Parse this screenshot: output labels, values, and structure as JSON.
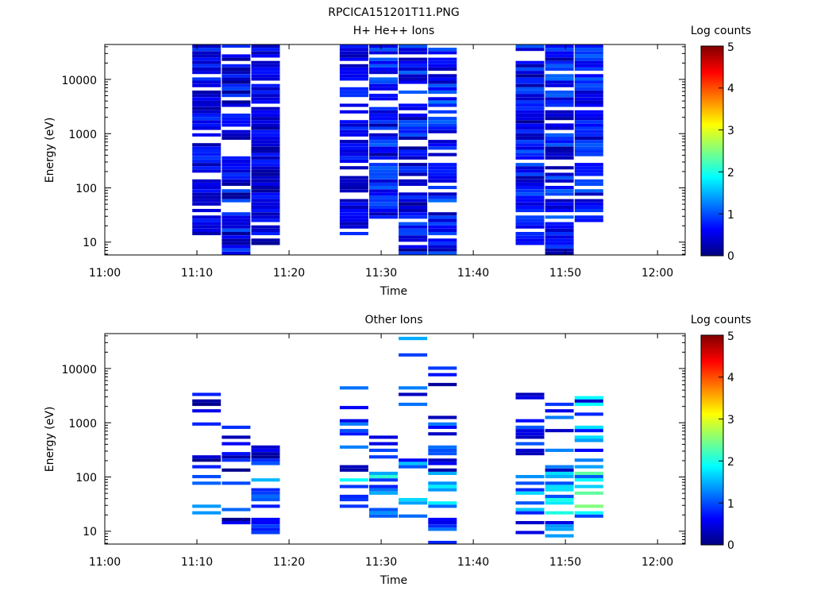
{
  "figure_title": "RPCICA151201T11.PNG",
  "colorbar": {
    "label": "Log counts",
    "ticks": [
      "0",
      "1",
      "2",
      "3",
      "4",
      "5"
    ],
    "colormap": [
      "#000080",
      "#0000ff",
      "#0080ff",
      "#00ffff",
      "#80ff80",
      "#ffff00",
      "#ff8000",
      "#ff0000",
      "#800000"
    ],
    "range": [
      0,
      5
    ]
  },
  "chart_data": [
    {
      "type": "heatmap",
      "title": "H+ He++ Ions",
      "xlabel": "Time",
      "ylabel": "Energy (eV)",
      "x_tick_labels": [
        "11:00",
        "11:10",
        "11:20",
        "11:30",
        "11:40",
        "11:50",
        "12:00"
      ],
      "y_tick_labels": [
        "10",
        "100",
        "1000",
        "10000"
      ],
      "y_scale": "log",
      "xlim": [
        "11:00",
        "12:03"
      ],
      "ylim": [
        5.8,
        44000
      ],
      "columns": [
        {
          "start": "11:09.5",
          "end": "11:12.6",
          "pattern": "h1"
        },
        {
          "start": "11:12.7",
          "end": "11:15.8",
          "pattern": "h2"
        },
        {
          "start": "11:15.9",
          "end": "11:19.0",
          "pattern": "h3"
        },
        {
          "start": "11:25.5",
          "end": "11:28.6",
          "pattern": "h4"
        },
        {
          "start": "11:28.7",
          "end": "11:31.8",
          "pattern": "h5"
        },
        {
          "start": "11:31.9",
          "end": "11:35.0",
          "pattern": "h6"
        },
        {
          "start": "11:35.1",
          "end": "11:38.2",
          "pattern": "h7"
        },
        {
          "start": "11:44.6",
          "end": "11:47.7",
          "pattern": "h8"
        },
        {
          "start": "11:47.8",
          "end": "11:50.9",
          "pattern": "h9"
        },
        {
          "start": "11:51.0",
          "end": "11:54.1",
          "pattern": "h10"
        }
      ]
    },
    {
      "type": "heatmap",
      "title": "Other Ions",
      "xlabel": "Time",
      "ylabel": "Energy (eV)",
      "x_tick_labels": [
        "11:00",
        "11:10",
        "11:20",
        "11:30",
        "11:40",
        "11:50",
        "12:00"
      ],
      "y_tick_labels": [
        "10",
        "100",
        "1000",
        "10000"
      ],
      "y_scale": "log",
      "xlim": [
        "11:00",
        "12:03"
      ],
      "ylim": [
        5.8,
        44000
      ],
      "columns": [
        {
          "start": "11:09.5",
          "end": "11:12.6",
          "pattern": "o1"
        },
        {
          "start": "11:12.7",
          "end": "11:15.8",
          "pattern": "o2"
        },
        {
          "start": "11:15.9",
          "end": "11:19.0",
          "pattern": "o3"
        },
        {
          "start": "11:25.5",
          "end": "11:28.6",
          "pattern": "o4"
        },
        {
          "start": "11:28.7",
          "end": "11:31.8",
          "pattern": "o5"
        },
        {
          "start": "11:31.9",
          "end": "11:35.0",
          "pattern": "o6"
        },
        {
          "start": "11:35.1",
          "end": "11:38.2",
          "pattern": "o7"
        },
        {
          "start": "11:44.6",
          "end": "11:47.7",
          "pattern": "o8"
        },
        {
          "start": "11:47.8",
          "end": "11:50.9",
          "pattern": "o9"
        },
        {
          "start": "11:51.0",
          "end": "11:54.1",
          "pattern": "o10"
        }
      ]
    }
  ]
}
